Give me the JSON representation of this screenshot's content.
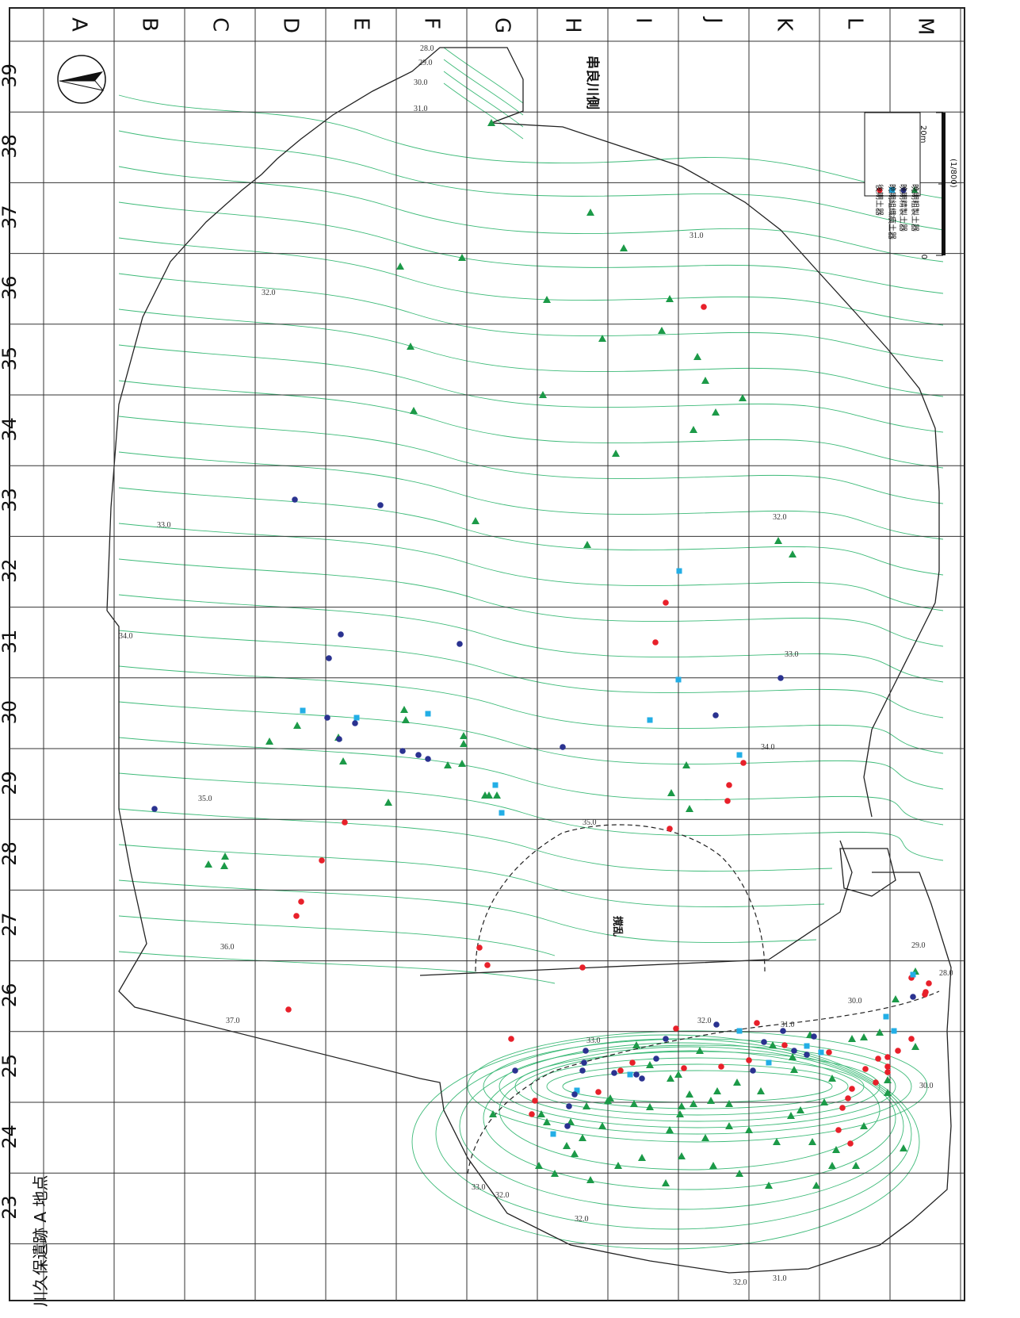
{
  "site_title": "川久保遺跡 A 地点",
  "river_side_label": "串良川側",
  "disturbed_label": "撹乱",
  "columns": [
    "A",
    "B",
    "C",
    "D",
    "E",
    "F",
    "G",
    "H",
    "I",
    "J",
    "K",
    "L",
    "M"
  ],
  "rows": [
    "39",
    "38",
    "37",
    "36",
    "35",
    "34",
    "33",
    "32",
    "31",
    "30",
    "29",
    "28",
    "27",
    "26",
    "25",
    "24",
    "23"
  ],
  "contour_labels": [
    "28.0",
    "29.0",
    "30.0",
    "31.0",
    "31.0",
    "32.0",
    "33.0",
    "32.0",
    "34.0",
    "33.0",
    "35.0",
    "35.0",
    "34.0",
    "36.0",
    "37.0",
    "33.0",
    "32.0",
    "31.0",
    "30.0",
    "29.0",
    "28.0",
    "33.0",
    "32.0",
    "32.0",
    "32.0",
    "31.0",
    "30.0"
  ],
  "legend": {
    "items": [
      {
        "label": "後期土器",
        "symbol": "circle",
        "color": "#e8202a"
      },
      {
        "label": "晩期組織痕土器",
        "symbol": "square",
        "color": "#22aee6"
      },
      {
        "label": "晩期精製土器",
        "symbol": "circle",
        "color": "#2a3290"
      },
      {
        "label": "晩期粗製土器",
        "symbol": "triangle",
        "color": "#1c9a48"
      }
    ]
  },
  "scale": {
    "zero": "0",
    "max": "20m",
    "ratio": "(1/800)"
  },
  "north_arrow_icon": "north-arrow-icon",
  "colors": {
    "contour": "#3dba78",
    "grid": "#333333",
    "late": "#e8202a",
    "final_textile": "#22aee6",
    "final_fine": "#2a3290",
    "final_coarse": "#1c9a48"
  },
  "finds": {
    "red": [
      [
        1150,
        1233
      ],
      [
        1172,
        1240
      ],
      [
        1168,
        1251
      ],
      [
        1167,
        1254
      ],
      [
        1150,
        1310
      ],
      [
        1133,
        1325
      ],
      [
        1120,
        1333
      ],
      [
        1120,
        1352
      ],
      [
        1108,
        1335
      ],
      [
        1120,
        1345
      ],
      [
        1105,
        1365
      ],
      [
        1092,
        1348
      ],
      [
        1075,
        1373
      ],
      [
        1070,
        1385
      ],
      [
        1046,
        1327
      ],
      [
        1063,
        1397
      ],
      [
        1058,
        1425
      ],
      [
        1073,
        1442
      ],
      [
        990,
        1318
      ],
      [
        955,
        1290
      ],
      [
        945,
        1337
      ],
      [
        910,
        1345
      ],
      [
        863,
        1347
      ],
      [
        853,
        1297
      ],
      [
        798,
        1340
      ],
      [
        783,
        1350
      ],
      [
        755,
        1377
      ],
      [
        675,
        1388
      ],
      [
        671,
        1405
      ],
      [
        840,
        760
      ],
      [
        827,
        810
      ],
      [
        888,
        387
      ],
      [
        845,
        1045
      ],
      [
        938,
        962
      ],
      [
        920,
        990
      ],
      [
        918,
        1010
      ],
      [
        735,
        1220
      ],
      [
        645,
        1310
      ],
      [
        615,
        1217
      ],
      [
        605,
        1195
      ],
      [
        435,
        1037
      ],
      [
        406,
        1085
      ],
      [
        380,
        1137
      ],
      [
        374,
        1155
      ],
      [
        364,
        1273
      ]
    ],
    "blue": [
      [
        1152,
        1229
      ],
      [
        1128,
        1300
      ],
      [
        1118,
        1282
      ],
      [
        1036,
        1327
      ],
      [
        1018,
        1319
      ],
      [
        970,
        1340
      ],
      [
        933,
        1300
      ],
      [
        933,
        952
      ],
      [
        820,
        908
      ],
      [
        856,
        857
      ],
      [
        857,
        720
      ],
      [
        795,
        1355
      ],
      [
        728,
        1375
      ],
      [
        698,
        1430
      ],
      [
        633,
        1025
      ],
      [
        625,
        990
      ],
      [
        382,
        896
      ],
      [
        450,
        905
      ],
      [
        540,
        900
      ]
    ],
    "navy": [
      [
        1152,
        1257
      ],
      [
        1027,
        1307
      ],
      [
        1018,
        1330
      ],
      [
        1002,
        1325
      ],
      [
        988,
        1300
      ],
      [
        964,
        1314
      ],
      [
        950,
        1350
      ],
      [
        904,
        1292
      ],
      [
        840,
        1310
      ],
      [
        828,
        1335
      ],
      [
        810,
        1360
      ],
      [
        803,
        1355
      ],
      [
        775,
        1353
      ],
      [
        739,
        1325
      ],
      [
        737,
        1340
      ],
      [
        735,
        1350
      ],
      [
        725,
        1380
      ],
      [
        718,
        1395
      ],
      [
        716,
        1420
      ],
      [
        650,
        1350
      ],
      [
        985,
        855
      ],
      [
        903,
        902
      ],
      [
        428,
        932
      ],
      [
        710,
        942
      ],
      [
        508,
        947
      ],
      [
        528,
        952
      ],
      [
        540,
        957
      ],
      [
        448,
        912
      ],
      [
        580,
        812
      ],
      [
        480,
        637
      ],
      [
        372,
        630
      ],
      [
        415,
        830
      ],
      [
        413,
        905
      ],
      [
        195,
        1020
      ],
      [
        430,
        800
      ]
    ]
  }
}
